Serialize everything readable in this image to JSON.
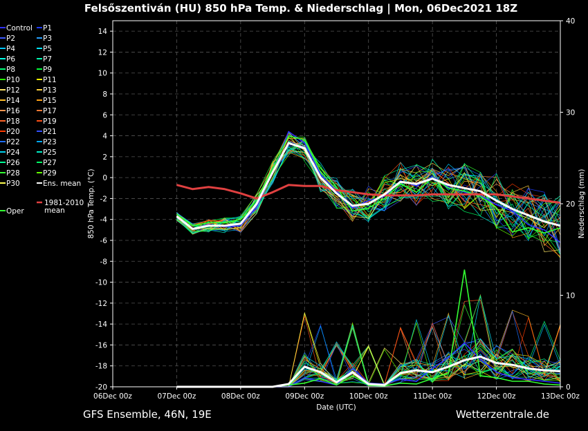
{
  "chart_data": {
    "type": "line",
    "title": "Felsőszentiván  (HU)  850 hPa Temp. & Niederschlag | Mon, 06Dec2021 18Z",
    "xlabel": "Date (UTC)",
    "ylabel_left": "850 hPa Temp. (°C)",
    "ylabel_right": "Niederschlag (mm)",
    "y_left_lim": [
      -20,
      15
    ],
    "y_left_ticks": [
      "14",
      "12",
      "10",
      "8",
      "6",
      "4",
      "2",
      "0",
      "-2",
      "-4",
      "-6",
      "-8",
      "-10",
      "-12",
      "-14",
      "-16",
      "-18",
      "-20"
    ],
    "y_right_lim": [
      0,
      40
    ],
    "y_right_ticks": [
      "40",
      "30",
      "20",
      "10",
      "0"
    ],
    "x_lim_days": [
      0,
      7
    ],
    "x_ticks": [
      "06Dec 00z",
      "07Dec 00z",
      "08Dec 00z",
      "09Dec 00z",
      "10Dec 00z",
      "11Dec 00z",
      "12Dec 00z",
      "13Dec 00z"
    ],
    "x_days": [
      1.0,
      1.25,
      1.5,
      1.75,
      2.0,
      2.25,
      2.5,
      2.75,
      3.0,
      3.25,
      3.5,
      3.75,
      4.0,
      4.25,
      4.5,
      4.75,
      5.0,
      5.25,
      5.5,
      5.75,
      6.0,
      6.25,
      6.5,
      6.75,
      7.0
    ],
    "series": [
      {
        "name": "Ens. mean",
        "color": "#ffffff",
        "temp": [
          -3.7,
          -4.9,
          -4.6,
          -4.6,
          -4.4,
          -2.5,
          0.5,
          3.3,
          2.8,
          0.0,
          -1.5,
          -2.7,
          -2.5,
          -1.6,
          -0.4,
          -0.6,
          -0.1,
          -0.7,
          -1.0,
          -1.3,
          -2.2,
          -3.0,
          -3.6,
          -4.2,
          -4.6
        ],
        "precip": [
          0,
          0,
          0,
          0,
          0,
          0,
          0,
          0.3,
          2.2,
          1.6,
          0.5,
          1.6,
          0.3,
          0.2,
          1.5,
          1.8,
          1.6,
          2.2,
          2.9,
          3.3,
          2.6,
          2.4,
          2.0,
          1.8,
          1.7
        ]
      },
      {
        "name": "1981-2010 mean",
        "color": "#e04040",
        "temp": [
          -0.7,
          -1.1,
          -0.9,
          -1.1,
          -1.5,
          -2.0,
          -1.4,
          -0.7,
          -0.8,
          -0.8,
          -1.2,
          -1.4,
          -1.6,
          -1.7,
          -1.7,
          -1.7,
          -1.6,
          -1.6,
          -1.6,
          -1.6,
          -1.6,
          -1.8,
          -2.0,
          -2.2,
          -2.4
        ]
      },
      {
        "name": "Control",
        "color": "#3030ff",
        "temp": [
          -3.7,
          -4.9,
          -4.5,
          -4.7,
          -4.6,
          -2.8,
          0.4,
          4.4,
          3.3,
          0.3,
          -1.3,
          -2.9,
          -2.2,
          -1.8,
          -0.3,
          -0.8,
          0.1,
          -0.9,
          -1.4,
          -1.7,
          -2.6,
          -3.2,
          -4.5,
          -5.0,
          -6.2
        ],
        "precip": [
          0,
          0,
          0,
          0,
          0,
          0,
          0,
          0,
          1.0,
          0.6,
          0.2,
          2.0,
          0.4,
          0.3,
          0.8,
          0.6,
          2.0,
          3.2,
          4.8,
          3.0,
          1.6,
          1.0,
          0.8,
          0.6,
          0.4
        ]
      },
      {
        "name": "Oper",
        "color": "#33ff33",
        "temp": [
          -3.5,
          -4.6,
          -4.3,
          -4.3,
          -4.0,
          -2.1,
          0.8,
          4.0,
          3.6,
          0.9,
          -0.9,
          -3.2,
          -2.9,
          -2.0,
          -0.6,
          -1.4,
          0.0,
          -1.0,
          -1.3,
          -1.8,
          -2.9,
          -5.2,
          -4.8,
          -5.3,
          -4.8
        ],
        "precip": [
          0,
          0,
          0,
          0,
          0,
          0,
          0,
          0.2,
          0.4,
          0.9,
          0.2,
          1.2,
          0.2,
          0.1,
          0.4,
          0.3,
          0.9,
          1.5,
          12.8,
          1.2,
          1.0,
          0.6,
          0.6,
          0.3,
          0.2
        ]
      }
    ],
    "members": [
      {
        "name": "P1",
        "color": "#1e3cff"
      },
      {
        "name": "P2",
        "color": "#3c5aff"
      },
      {
        "name": "P3",
        "color": "#28a0ff"
      },
      {
        "name": "P4",
        "color": "#00c8ff"
      },
      {
        "name": "P5",
        "color": "#00e6ff"
      },
      {
        "name": "P6",
        "color": "#00ffe6"
      },
      {
        "name": "P7",
        "color": "#00ffb4"
      },
      {
        "name": "P8",
        "color": "#00ff78"
      },
      {
        "name": "P9",
        "color": "#00ff3c"
      },
      {
        "name": "P10",
        "color": "#28ff00"
      },
      {
        "name": "P11",
        "color": "#ffff00"
      },
      {
        "name": "P12",
        "color": "#ffe664"
      },
      {
        "name": "P13",
        "color": "#ffd23c"
      },
      {
        "name": "P14",
        "color": "#ffbe28"
      },
      {
        "name": "P15",
        "color": "#ffa014"
      },
      {
        "name": "P16",
        "color": "#ff9650"
      },
      {
        "name": "P17",
        "color": "#ff7832"
      },
      {
        "name": "P18",
        "color": "#ff6428"
      },
      {
        "name": "P19",
        "color": "#ff5014"
      },
      {
        "name": "P20",
        "color": "#ff3c00"
      },
      {
        "name": "P21",
        "color": "#3250ff"
      },
      {
        "name": "P22",
        "color": "#1e6eff"
      },
      {
        "name": "P23",
        "color": "#00aaff"
      },
      {
        "name": "P24",
        "color": "#00d2f0"
      },
      {
        "name": "P25",
        "color": "#00f0c8"
      },
      {
        "name": "P26",
        "color": "#00ff96"
      },
      {
        "name": "P27",
        "color": "#00ff64"
      },
      {
        "name": "P28",
        "color": "#32ff32"
      },
      {
        "name": "P29",
        "color": "#64ff00"
      },
      {
        "name": "P30",
        "color": "#ffff50"
      }
    ]
  },
  "footer": {
    "left": "GFS Ensemble, 46N, 19E",
    "right": "Wetterzentrale.de"
  }
}
